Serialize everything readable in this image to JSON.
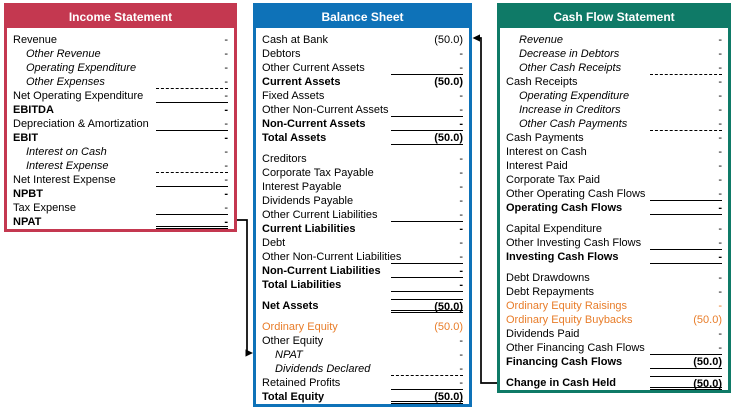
{
  "colors": {
    "income_accent": "#C43850",
    "balance_accent": "#0E72B8",
    "cashflow_accent": "#0F7A67",
    "orange": "#E87D2A",
    "rule": "#000000"
  },
  "panels": [
    {
      "id": "income-statement",
      "title": "Income Statement",
      "accent": "#C43850",
      "rows": [
        {
          "label": "Revenue",
          "value": "-"
        },
        {
          "label": "Other Revenue",
          "value": "-",
          "style": "italic"
        },
        {
          "label": "Operating Expenditure",
          "value": "-",
          "style": "italic"
        },
        {
          "label": "Other Expenses",
          "value": "-",
          "style": "italic",
          "rule": "dashed"
        },
        {
          "label": "Net Operating Expenditure",
          "value": "-",
          "rule": "solid"
        },
        {
          "label": "EBITDA",
          "value": "-",
          "style": "bold"
        },
        {
          "label": "Depreciation & Amortization",
          "value": "-",
          "rule": "solid"
        },
        {
          "label": "EBIT",
          "value": "-",
          "style": "bold"
        },
        {
          "label": "Interest on Cash",
          "value": "-",
          "style": "italic"
        },
        {
          "label": "Interest Expense",
          "value": "-",
          "style": "italic",
          "rule": "dashed"
        },
        {
          "label": "Net Interest Expense",
          "value": "-",
          "rule": "solid"
        },
        {
          "label": "NPBT",
          "value": "-",
          "style": "bold"
        },
        {
          "label": "Tax Expense",
          "value": "-",
          "rule": "solid"
        },
        {
          "label": "NPAT",
          "value": "-",
          "style": "bold",
          "rule": "double"
        }
      ]
    },
    {
      "id": "balance-sheet",
      "title": "Balance Sheet",
      "accent": "#0E72B8",
      "rows": [
        {
          "label": "Cash at Bank",
          "value": "(50.0)"
        },
        {
          "label": "Debtors",
          "value": "-"
        },
        {
          "label": "Other Current Assets",
          "value": "-",
          "rule": "solid"
        },
        {
          "label": "Current Assets",
          "value": "(50.0)",
          "style": "bold"
        },
        {
          "label": "Fixed Assets",
          "value": "-"
        },
        {
          "label": "Other Non-Current Assets",
          "value": "-",
          "rule": "solid"
        },
        {
          "label": "Non-Current Assets",
          "value": "-",
          "style": "bold",
          "rule": "solid"
        },
        {
          "label": "Total Assets",
          "value": "(50.0)",
          "style": "bold",
          "rule": "solid"
        },
        {
          "label": "Creditors",
          "value": "-",
          "gap_before": true
        },
        {
          "label": "Corporate Tax Payable",
          "value": "-"
        },
        {
          "label": "Interest Payable",
          "value": "-"
        },
        {
          "label": "Dividends Payable",
          "value": "-"
        },
        {
          "label": "Other Current Liabilities",
          "value": "-",
          "rule": "solid"
        },
        {
          "label": "Current Liabilities",
          "value": "-",
          "style": "bold"
        },
        {
          "label": "Debt",
          "value": "-"
        },
        {
          "label": "Other Non-Current Liabilities",
          "value": "-",
          "rule": "solid"
        },
        {
          "label": "Non-Current Liabilities",
          "value": "-",
          "style": "bold",
          "rule": "solid"
        },
        {
          "label": "Total Liabilities",
          "value": "-",
          "style": "bold",
          "rule": "solid"
        },
        {
          "label": "Net Assets",
          "value": "(50.0)",
          "style": "bold",
          "rule": "double",
          "rule_top": true,
          "gap_before": true
        },
        {
          "label": "Ordinary Equity",
          "value": "(50.0)",
          "style": "orange",
          "gap_before": true
        },
        {
          "label": "Other Equity",
          "value": "-"
        },
        {
          "label": "NPAT",
          "value": "-",
          "style": "italic"
        },
        {
          "label": "Dividends Declared",
          "value": "-",
          "style": "italic",
          "rule": "dashed"
        },
        {
          "label": "Retained Profits",
          "value": "-",
          "rule": "solid"
        },
        {
          "label": "Total Equity",
          "value": "(50.0)",
          "style": "bold",
          "rule": "double"
        }
      ]
    },
    {
      "id": "cash-flow-statement",
      "title": "Cash Flow Statement",
      "accent": "#0F7A67",
      "rows": [
        {
          "label": "Revenue",
          "value": "-",
          "style": "italic"
        },
        {
          "label": "Decrease in Debtors",
          "value": "-",
          "style": "italic"
        },
        {
          "label": "Other Cash Receipts",
          "value": "-",
          "style": "italic",
          "rule": "dashed"
        },
        {
          "label": "Cash Receipts",
          "value": "-"
        },
        {
          "label": "Operating Expenditure",
          "value": "-",
          "style": "italic"
        },
        {
          "label": "Increase in Creditors",
          "value": "-",
          "style": "italic"
        },
        {
          "label": "Other Cash Payments",
          "value": "-",
          "style": "italic",
          "rule": "dashed"
        },
        {
          "label": "Cash Payments",
          "value": "-"
        },
        {
          "label": "Interest on Cash",
          "value": "-"
        },
        {
          "label": "Interest Paid",
          "value": "-"
        },
        {
          "label": "Corporate Tax Paid",
          "value": "-"
        },
        {
          "label": "Other Operating Cash Flows",
          "value": "-",
          "rule": "solid"
        },
        {
          "label": "Operating Cash Flows",
          "value": "-",
          "style": "bold",
          "rule": "solid"
        },
        {
          "label": "Capital Expenditure",
          "value": "-",
          "gap_before": true
        },
        {
          "label": "Other Investing Cash Flows",
          "value": "-",
          "rule": "solid"
        },
        {
          "label": "Investing Cash Flows",
          "value": "-",
          "style": "bold",
          "rule": "solid"
        },
        {
          "label": "Debt Drawdowns",
          "value": "-",
          "gap_before": true
        },
        {
          "label": "Debt Repayments",
          "value": "-"
        },
        {
          "label": "Ordinary Equity Raisings",
          "value": "-",
          "style": "orange"
        },
        {
          "label": "Ordinary Equity Buybacks",
          "value": "(50.0)",
          "style": "orange"
        },
        {
          "label": "Dividends Paid",
          "value": "-"
        },
        {
          "label": "Other Financing Cash Flows",
          "value": "-",
          "rule": "solid"
        },
        {
          "label": "Financing Cash Flows",
          "value": "(50.0)",
          "style": "bold",
          "rule": "solid"
        },
        {
          "label": "Change in Cash Held",
          "value": "(50.0)",
          "style": "bold",
          "rule": "double",
          "rule_top": true,
          "gap_before": true
        }
      ]
    }
  ],
  "connectors": [
    {
      "name": "npat-to-equity-arrow"
    },
    {
      "name": "change-in-cash-to-cash-at-bank-arrow"
    }
  ]
}
